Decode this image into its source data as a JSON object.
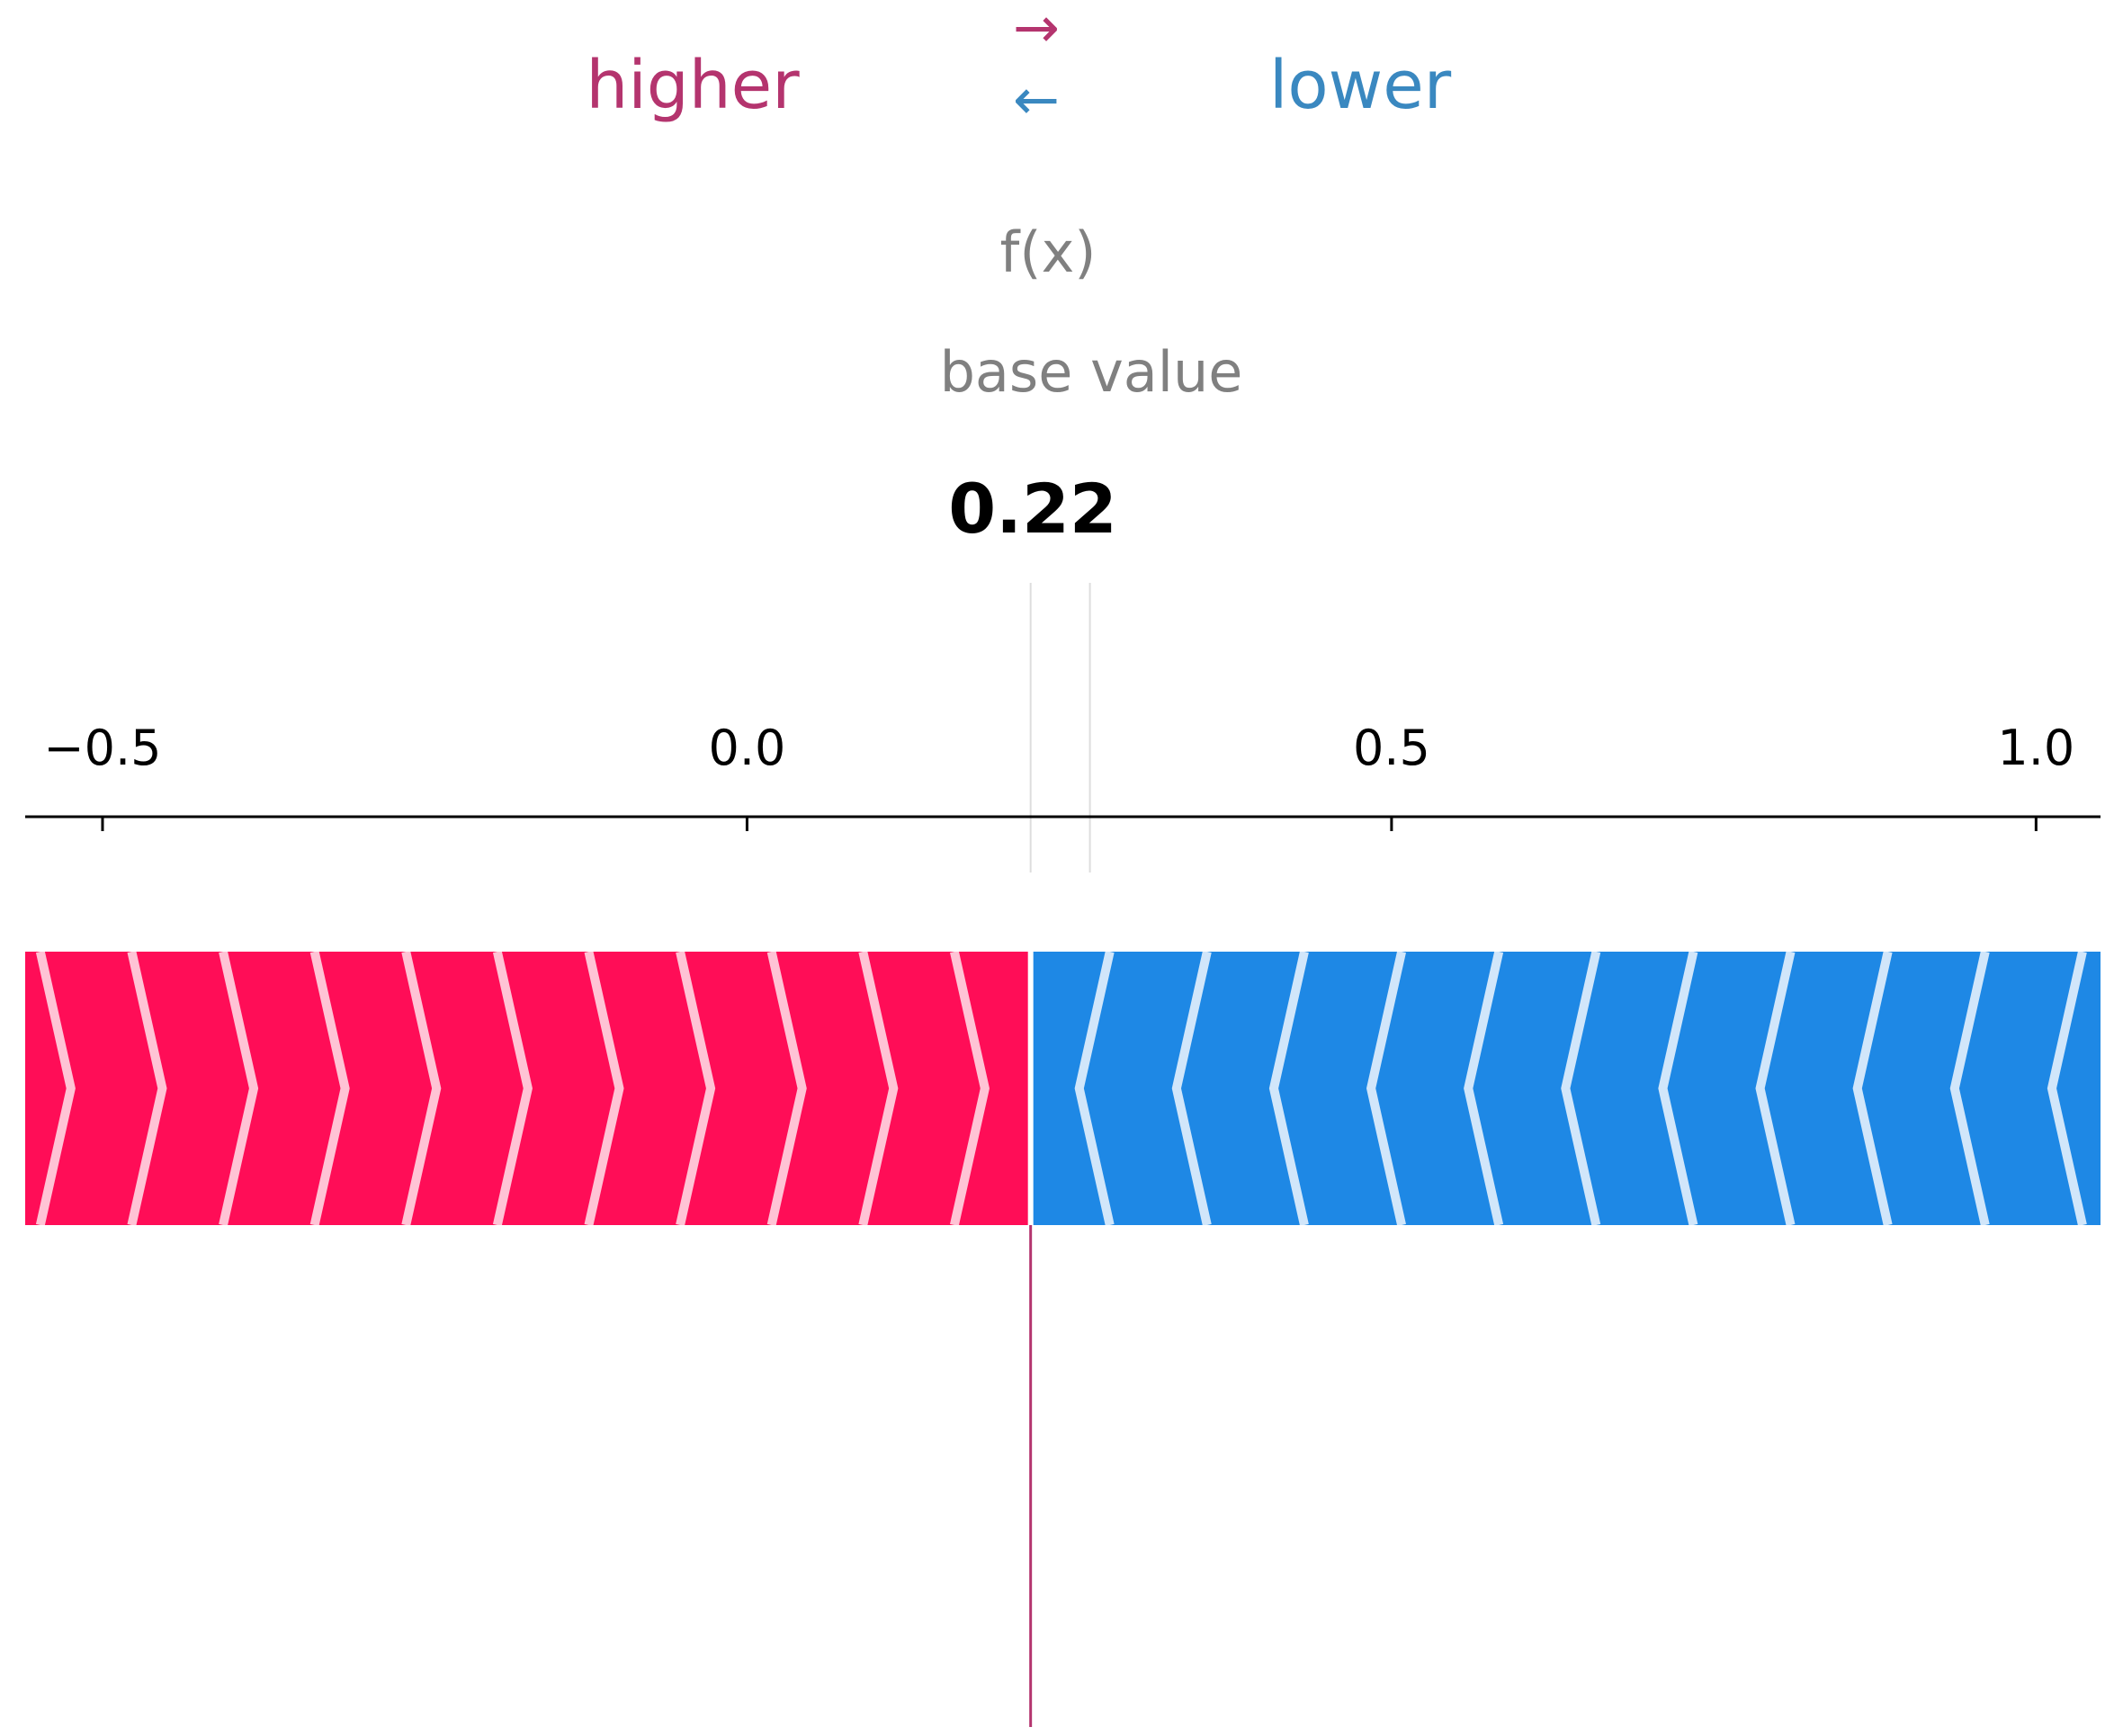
{
  "colors": {
    "higher": "#ff0d57",
    "higher_text": "#b4346e",
    "higher_stripe": "#ffc3d5",
    "lower": "#1e88e5",
    "lower_text": "#3a88c0",
    "lower_stripe": "#d1e6fa",
    "label_gray": "#808080",
    "axis": "#000000",
    "output_line": "#b4346e"
  },
  "legend": {
    "higher_label": "higher",
    "lower_label": "lower",
    "right_arrow": "→",
    "left_arrow": "←"
  },
  "chart_data": {
    "type": "force",
    "fx_label": "f(x)",
    "base_value_label": "base value",
    "output_value": 0.22,
    "output_text": "0.22",
    "base_value": 0.266,
    "xlim": [
      -0.56,
      1.05
    ],
    "ticks": [
      {
        "value": -0.5,
        "label": "−0.5"
      },
      {
        "value": 0.0,
        "label": "0.0"
      },
      {
        "value": 0.5,
        "label": "0.5"
      },
      {
        "value": 1.0,
        "label": "1.0"
      }
    ],
    "higher_segment": [
      -0.56,
      0.22
    ],
    "lower_segment": [
      0.22,
      1.05
    ]
  }
}
